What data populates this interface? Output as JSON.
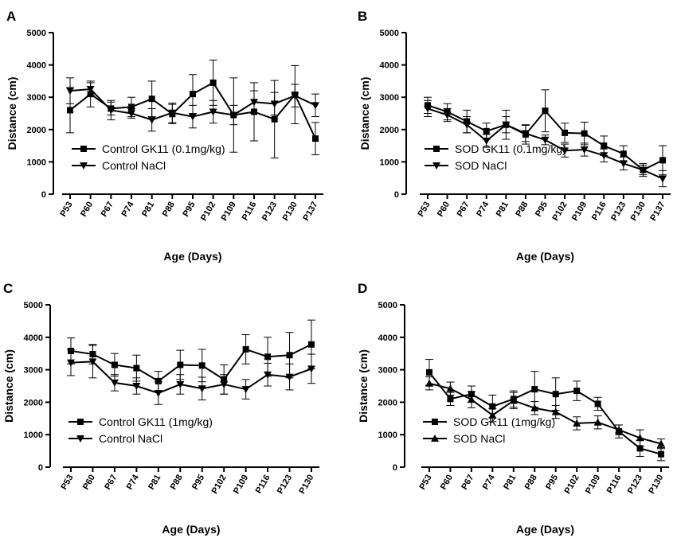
{
  "chart_data": [
    {
      "type": "line",
      "panel_letter": "A",
      "xlabel": "Age (Days)",
      "ylabel": "Distance (cm)",
      "ylim": [
        0,
        5000
      ],
      "yticks": [
        0,
        1000,
        2000,
        3000,
        4000,
        5000
      ],
      "categories": [
        "P53",
        "P60",
        "P67",
        "P74",
        "P81",
        "P88",
        "P95",
        "P102",
        "P109",
        "P116",
        "P123",
        "P130",
        "P137"
      ],
      "legend_position": "bottom-left",
      "series": [
        {
          "name": "Control GK11 (0.1mg/kg)",
          "marker": "square",
          "values": [
            2600,
            3100,
            2650,
            2700,
            2950,
            2480,
            3100,
            3450,
            2450,
            2550,
            2320,
            3080,
            1720
          ],
          "errors": [
            700,
            400,
            200,
            300,
            550,
            300,
            600,
            700,
            1150,
            900,
            1200,
            900,
            500
          ]
        },
        {
          "name": "Control NaCl",
          "marker": "triangle-down",
          "values": [
            3200,
            3250,
            2600,
            2500,
            2300,
            2520,
            2400,
            2550,
            2450,
            2850,
            2800,
            3050,
            2750
          ],
          "errors": [
            400,
            200,
            300,
            150,
            350,
            300,
            350,
            350,
            300,
            350,
            350,
            350,
            350
          ]
        }
      ]
    },
    {
      "type": "line",
      "panel_letter": "B",
      "xlabel": "Age (Days)",
      "ylabel": "Distance (cm)",
      "ylim": [
        0,
        5000
      ],
      "yticks": [
        0,
        1000,
        2000,
        3000,
        4000,
        5000
      ],
      "categories": [
        "P53",
        "P60",
        "P67",
        "P74",
        "P81",
        "P88",
        "P95",
        "P102",
        "P109",
        "P116",
        "P123",
        "P130",
        "P137"
      ],
      "legend_position": "bottom-left",
      "series": [
        {
          "name": "SOD GK11 (0.1mg/kg)",
          "marker": "square",
          "values": [
            2750,
            2550,
            2250,
            1950,
            2150,
            1850,
            2580,
            1900,
            1880,
            1500,
            1250,
            750,
            1050
          ],
          "errors": [
            250,
            250,
            350,
            250,
            450,
            300,
            650,
            300,
            350,
            300,
            250,
            200,
            450
          ]
        },
        {
          "name": "SOD NaCl",
          "marker": "triangle-down",
          "values": [
            2650,
            2450,
            2150,
            1650,
            2150,
            1880,
            1680,
            1350,
            1380,
            1200,
            950,
            750,
            480
          ],
          "errors": [
            250,
            200,
            250,
            200,
            250,
            250,
            150,
            200,
            200,
            200,
            200,
            150,
            250
          ]
        }
      ]
    },
    {
      "type": "line",
      "panel_letter": "C",
      "xlabel": "Age (Days)",
      "ylabel": "Distance (cm)",
      "ylim": [
        0,
        5000
      ],
      "yticks": [
        0,
        1000,
        2000,
        3000,
        4000,
        5000
      ],
      "categories": [
        "P53",
        "P60",
        "P67",
        "P74",
        "P81",
        "P88",
        "P95",
        "P102",
        "P109",
        "P116",
        "P123",
        "P130"
      ],
      "legend_position": "bottom-left",
      "series": [
        {
          "name": "Control GK11 (1mg/kg)",
          "marker": "square",
          "values": [
            3580,
            3480,
            3150,
            3050,
            2650,
            3150,
            3130,
            2700,
            3630,
            3400,
            3450,
            3780
          ],
          "errors": [
            400,
            300,
            350,
            400,
            300,
            450,
            500,
            450,
            450,
            600,
            700,
            750
          ]
        },
        {
          "name": "Control NaCl",
          "marker": "triangle-down",
          "values": [
            3220,
            3250,
            2600,
            2500,
            2280,
            2550,
            2420,
            2550,
            2400,
            2850,
            2780,
            3030
          ],
          "errors": [
            400,
            500,
            250,
            250,
            350,
            300,
            350,
            300,
            300,
            350,
            400,
            450
          ]
        }
      ]
    },
    {
      "type": "line",
      "panel_letter": "D",
      "xlabel": "Age (Days)",
      "ylabel": "Distance (cm)",
      "ylim": [
        0,
        5000
      ],
      "yticks": [
        0,
        1000,
        2000,
        3000,
        4000,
        5000
      ],
      "categories": [
        "P53",
        "P60",
        "P67",
        "P74",
        "P81",
        "P88",
        "P95",
        "P102",
        "P109",
        "P116",
        "P123",
        "P130"
      ],
      "legend_position": "bottom-left",
      "series": [
        {
          "name": "SOD GK11 (1mg/kg)",
          "marker": "square",
          "values": [
            2920,
            2100,
            2250,
            1870,
            2100,
            2400,
            2250,
            2350,
            1950,
            1100,
            580,
            400
          ],
          "errors": [
            400,
            200,
            250,
            350,
            250,
            550,
            500,
            300,
            200,
            200,
            250,
            200
          ]
        },
        {
          "name": "SOD NaCl",
          "marker": "triangle-up",
          "values": [
            2580,
            2420,
            2080,
            1600,
            2050,
            1820,
            1700,
            1350,
            1380,
            1150,
            900,
            720
          ],
          "errors": [
            200,
            200,
            250,
            200,
            250,
            200,
            200,
            200,
            200,
            150,
            250,
            150
          ]
        }
      ]
    }
  ]
}
